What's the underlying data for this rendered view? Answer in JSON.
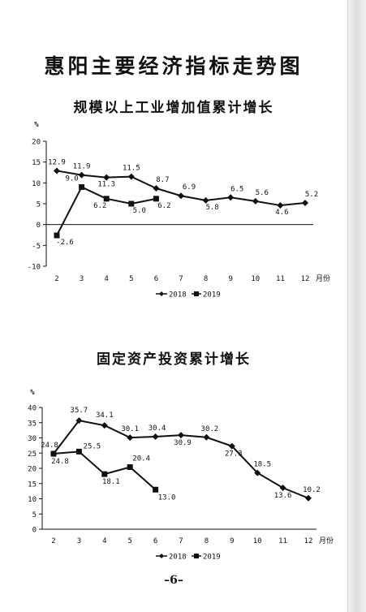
{
  "page": {
    "title": "惠阳主要经济指标走势图",
    "page_number": "–6–"
  },
  "chart_data": [
    {
      "type": "line",
      "title": "规模以上工业增加值累计增长",
      "unit": "%",
      "x_unit": "月份",
      "categories": [
        "2",
        "3",
        "4",
        "5",
        "6",
        "7",
        "8",
        "9",
        "10",
        "11",
        "12"
      ],
      "ylim": [
        -10,
        20
      ],
      "yticks": [
        -10,
        -5,
        0,
        5,
        10,
        15,
        20
      ],
      "legend_position": "bottom",
      "grid": false,
      "series": [
        {
          "name": "2018",
          "marker": "diamond",
          "values": [
            12.9,
            11.9,
            11.3,
            11.5,
            8.7,
            6.9,
            5.8,
            6.5,
            5.6,
            4.6,
            5.2
          ]
        },
        {
          "name": "2019",
          "marker": "square",
          "values": [
            -2.6,
            9.0,
            6.2,
            5.0,
            6.2,
            null,
            null,
            null,
            null,
            null,
            null
          ]
        }
      ]
    },
    {
      "type": "line",
      "title": "固定资产投资累计增长",
      "unit": "%",
      "x_unit": "月份",
      "categories": [
        "2",
        "3",
        "4",
        "5",
        "6",
        "7",
        "8",
        "9",
        "10",
        "11",
        "12"
      ],
      "ylim": [
        0,
        40
      ],
      "yticks": [
        0,
        5,
        10,
        15,
        20,
        25,
        30,
        35,
        40
      ],
      "legend_position": "bottom",
      "grid": false,
      "series": [
        {
          "name": "2018",
          "marker": "diamond",
          "values": [
            24.8,
            35.7,
            34.1,
            30.1,
            30.4,
            30.9,
            30.2,
            27.3,
            18.5,
            13.6,
            10.2
          ]
        },
        {
          "name": "2019",
          "marker": "square",
          "values": [
            24.8,
            25.5,
            18.1,
            20.4,
            13.0,
            null,
            null,
            null,
            null,
            null,
            null
          ]
        }
      ]
    }
  ]
}
